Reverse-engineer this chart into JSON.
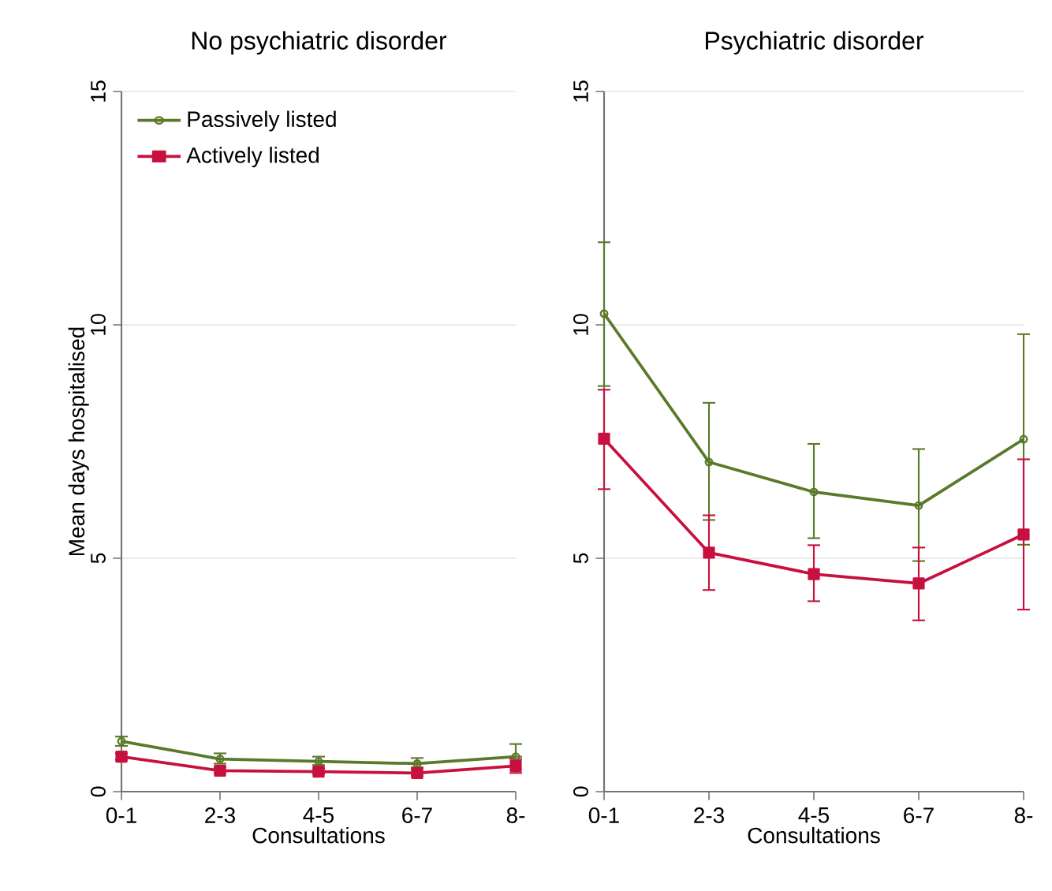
{
  "chart_data": [
    {
      "type": "line",
      "title": "No psychiatric disorder",
      "xlabel": "Consultations",
      "ylabel": "Mean days hospitalised",
      "categories": [
        "0-1",
        "2-3",
        "4-5",
        "6-7",
        "8-"
      ],
      "ylim": [
        0,
        15
      ],
      "yticks": [
        0,
        5,
        10,
        15
      ],
      "grid": "y",
      "legend": "top left",
      "series": [
        {
          "name": "Passively listed",
          "color": "#5a7a2a",
          "marker": "circle",
          "values": [
            1.08,
            0.7,
            0.65,
            0.6,
            0.75
          ],
          "errors": [
            [
              0.98,
              1.18
            ],
            [
              0.6,
              0.82
            ],
            [
              0.57,
              0.75
            ],
            [
              0.52,
              0.72
            ],
            [
              0.75,
              1.02
            ]
          ]
        },
        {
          "name": "Actively listed",
          "color": "#c8103e",
          "marker": "square",
          "values": [
            0.75,
            0.45,
            0.43,
            0.4,
            0.55
          ],
          "errors": [
            [
              0.68,
              0.82
            ],
            [
              0.4,
              0.52
            ],
            [
              0.38,
              0.5
            ],
            [
              0.34,
              0.48
            ],
            [
              0.4,
              0.7
            ]
          ]
        }
      ]
    },
    {
      "type": "line",
      "title": "Psychiatric disorder",
      "xlabel": "Consultations",
      "categories": [
        "0-1",
        "2-3",
        "4-5",
        "6-7",
        "8-"
      ],
      "ylim": [
        0,
        15
      ],
      "yticks": [
        0,
        5,
        10,
        15
      ],
      "grid": "y",
      "series": [
        {
          "color": "#5a7a2a",
          "marker": "circle",
          "values": [
            10.24,
            7.06,
            6.42,
            6.13,
            7.55
          ],
          "errors": [
            [
              8.69,
              11.77
            ],
            [
              5.82,
              8.33
            ],
            [
              5.43,
              7.45
            ],
            [
              4.94,
              7.34
            ],
            [
              5.29,
              9.8
            ]
          ]
        },
        {
          "color": "#c8103e",
          "marker": "square",
          "values": [
            7.56,
            5.12,
            4.66,
            4.46,
            5.51
          ],
          "errors": [
            [
              6.48,
              8.61
            ],
            [
              4.32,
              5.92
            ],
            [
              4.08,
              5.28
            ],
            [
              3.67,
              5.23
            ],
            [
              3.9,
              7.12
            ]
          ]
        }
      ]
    }
  ]
}
